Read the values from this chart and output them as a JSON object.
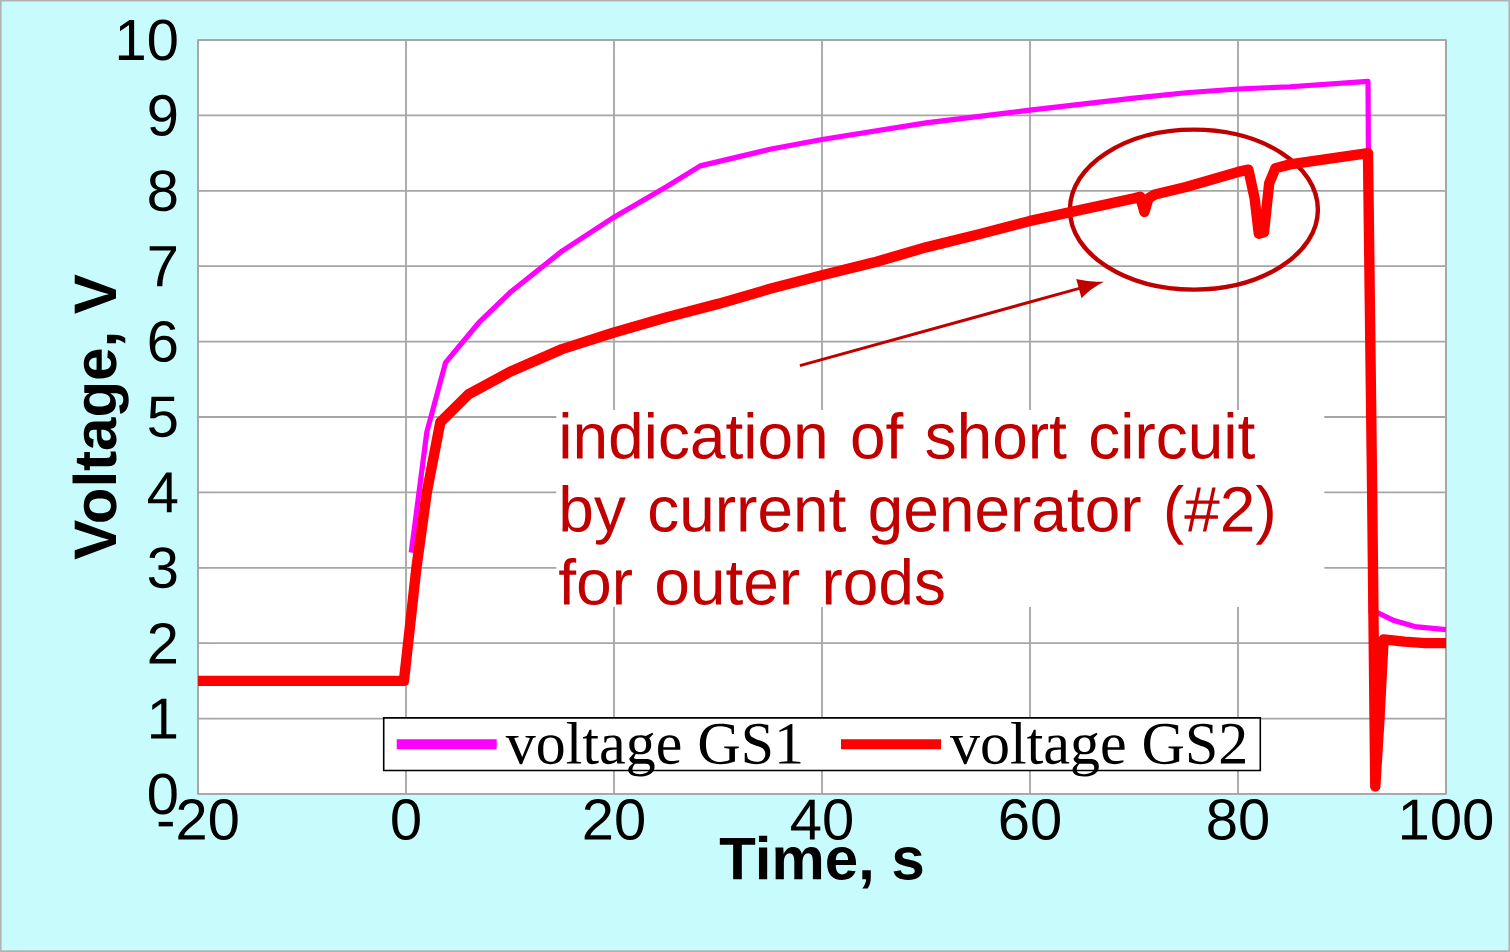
{
  "chart_data": {
    "type": "line",
    "xlabel": "Time, s",
    "ylabel": "Voltage, V",
    "xlim": [
      -20,
      100
    ],
    "ylim": [
      0,
      10
    ],
    "xticks": [
      -20,
      0,
      20,
      40,
      60,
      80,
      100
    ],
    "yticks": [
      0,
      1,
      2,
      3,
      4,
      5,
      6,
      7,
      8,
      9,
      10
    ],
    "grid": true,
    "legend": "bottom",
    "marker": "none",
    "line_style": "solid",
    "series": [
      {
        "name": "voltage GS1",
        "color": "#ff00ff",
        "x": [
          0.5,
          2,
          3.8,
          7,
          10,
          15,
          20,
          25,
          28.3,
          35,
          40,
          50,
          60,
          70,
          75,
          80,
          85,
          92.5,
          92.8,
          93.5,
          95,
          97,
          100
        ],
        "values": [
          3.2,
          4.8,
          5.72,
          6.25,
          6.65,
          7.2,
          7.65,
          8.05,
          8.33,
          8.55,
          8.68,
          8.9,
          9.07,
          9.23,
          9.3,
          9.35,
          9.38,
          9.45,
          2.4,
          2.4,
          2.3,
          2.22,
          2.18
        ]
      },
      {
        "name": "voltage GS2",
        "color": "#ff0000",
        "x": [
          -20,
          -0.2,
          1,
          2,
          3.3,
          6,
          10,
          15,
          20,
          25,
          30,
          35,
          40,
          45,
          50,
          55,
          60,
          65,
          70,
          70.6,
          71,
          71.4,
          72,
          75,
          80,
          81,
          81.6,
          82,
          82.5,
          83,
          83.6,
          85,
          90,
          92.5,
          92.9,
          93.2,
          93.6,
          94,
          96,
          98,
          100
        ],
        "values": [
          1.5,
          1.5,
          3.0,
          4.0,
          4.93,
          5.3,
          5.6,
          5.9,
          6.12,
          6.32,
          6.5,
          6.7,
          6.88,
          7.05,
          7.25,
          7.42,
          7.6,
          7.75,
          7.9,
          7.92,
          7.72,
          7.9,
          7.95,
          8.05,
          8.25,
          8.28,
          7.9,
          7.43,
          7.45,
          8.1,
          8.3,
          8.35,
          8.45,
          8.5,
          4.0,
          0.1,
          1.0,
          2.05,
          2.02,
          2.0,
          2.0
        ]
      }
    ],
    "annotations": [
      "indication of short circuit by current generator (#2) for outer rods"
    ]
  }
}
